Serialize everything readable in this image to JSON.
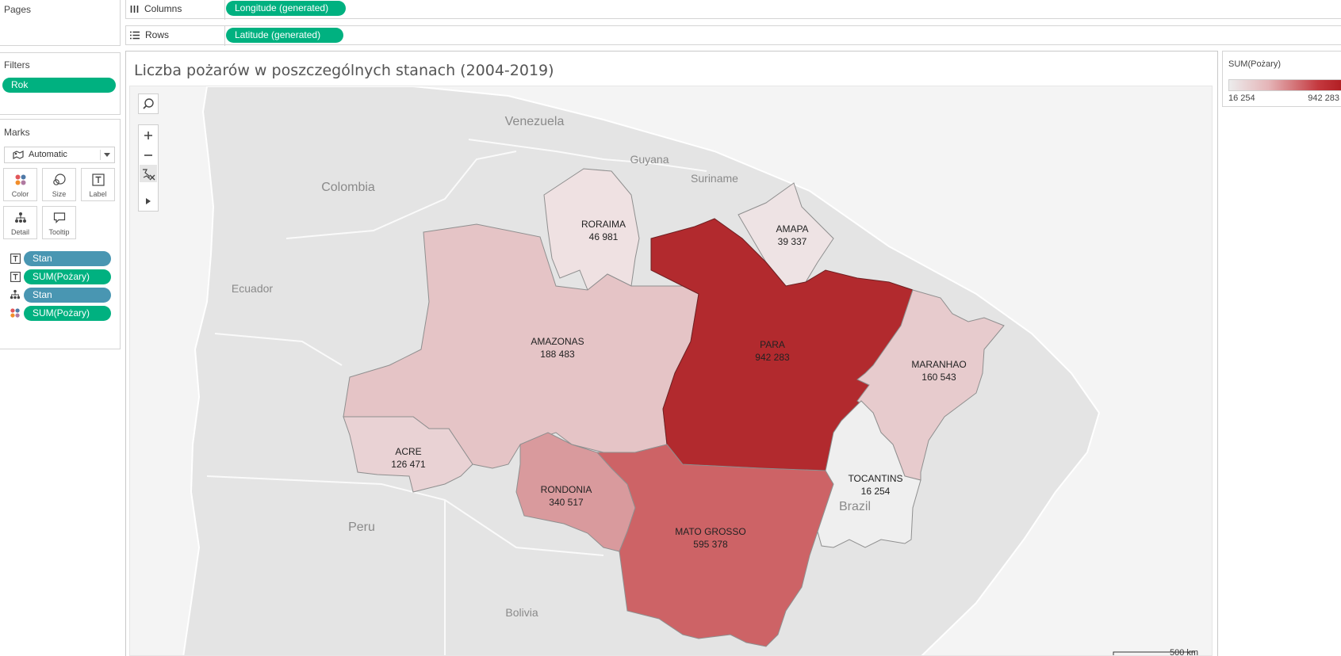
{
  "shelves": {
    "pages_title": "Pages",
    "columns_label": "Columns",
    "columns_pill": "Longitude (generated)",
    "rows_label": "Rows",
    "rows_pill": "Latitude (generated)"
  },
  "filters": {
    "title": "Filters",
    "items": [
      "Rok"
    ]
  },
  "marks": {
    "title": "Marks",
    "mark_type": "Automatic",
    "buttons": [
      "Color",
      "Size",
      "Label",
      "Detail",
      "Tooltip"
    ],
    "fields": [
      {
        "icon": "label-icon",
        "label": "Stan",
        "color": "#4996b2"
      },
      {
        "icon": "label-icon",
        "label": "SUM(Pożary)",
        "color": "#00b180"
      },
      {
        "icon": "detail-icon",
        "label": "Stan",
        "color": "#4996b2"
      },
      {
        "icon": "color-icon",
        "label": "SUM(Pożary)",
        "color": "#00b180"
      }
    ]
  },
  "viz": {
    "title": "Liczba pożarów w poszczególnych stanach (2004-2019)",
    "scale_label": "500 km"
  },
  "countries": [
    "Venezuela",
    "Guyana",
    "Suriname",
    "Colombia",
    "Ecuador",
    "Peru",
    "Bolivia",
    "Brazil"
  ],
  "legend": {
    "title": "SUM(Pożary)",
    "min_label": "16 254",
    "max_label": "942 283",
    "color_low": "#ececec",
    "color_high": "#b21f24"
  },
  "states": [
    {
      "name": "RORAIMA",
      "value": "46 981",
      "color": "#efe1e2"
    },
    {
      "name": "AMAPA",
      "value": "39 337",
      "color": "#eee3e4"
    },
    {
      "name": "AMAZONAS",
      "value": "188 483",
      "color": "#e5c4c6"
    },
    {
      "name": "PARA",
      "value": "942 283",
      "color": "#b22a2e"
    },
    {
      "name": "MARANHAO",
      "value": "160 543",
      "color": "#e7cbcd"
    },
    {
      "name": "ACRE",
      "value": "126 471",
      "color": "#e9d2d4"
    },
    {
      "name": "RONDONIA",
      "value": "340 517",
      "color": "#d99a9d"
    },
    {
      "name": "MATO GROSSO",
      "value": "595 378",
      "color": "#cd6366"
    },
    {
      "name": "TOCANTINS",
      "value": "16 254",
      "color": "#efefef"
    }
  ]
}
